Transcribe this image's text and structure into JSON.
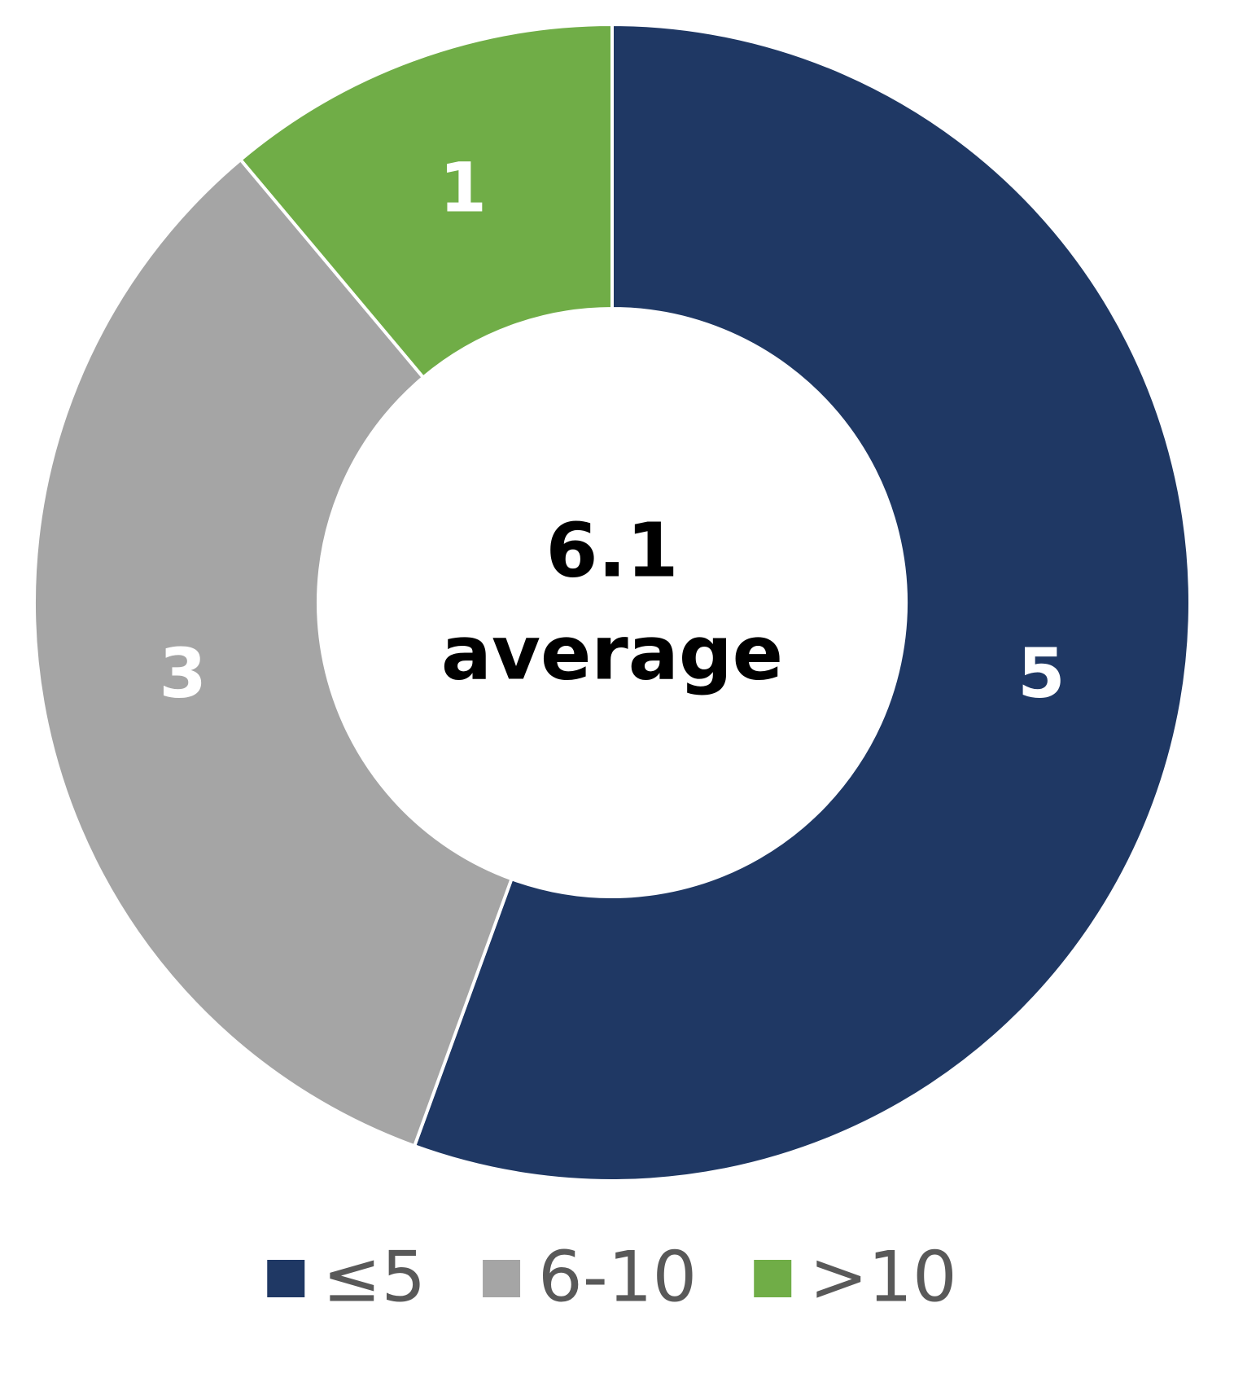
{
  "chart_data": {
    "type": "donut",
    "categories": [
      "≤5",
      "6-10",
      ">10"
    ],
    "values": [
      5,
      3,
      1
    ],
    "colors": [
      "#1f3864",
      "#a5a5a5",
      "#70ad47"
    ],
    "center_value": 6.1,
    "center_label": "average",
    "legend": "bottom"
  }
}
